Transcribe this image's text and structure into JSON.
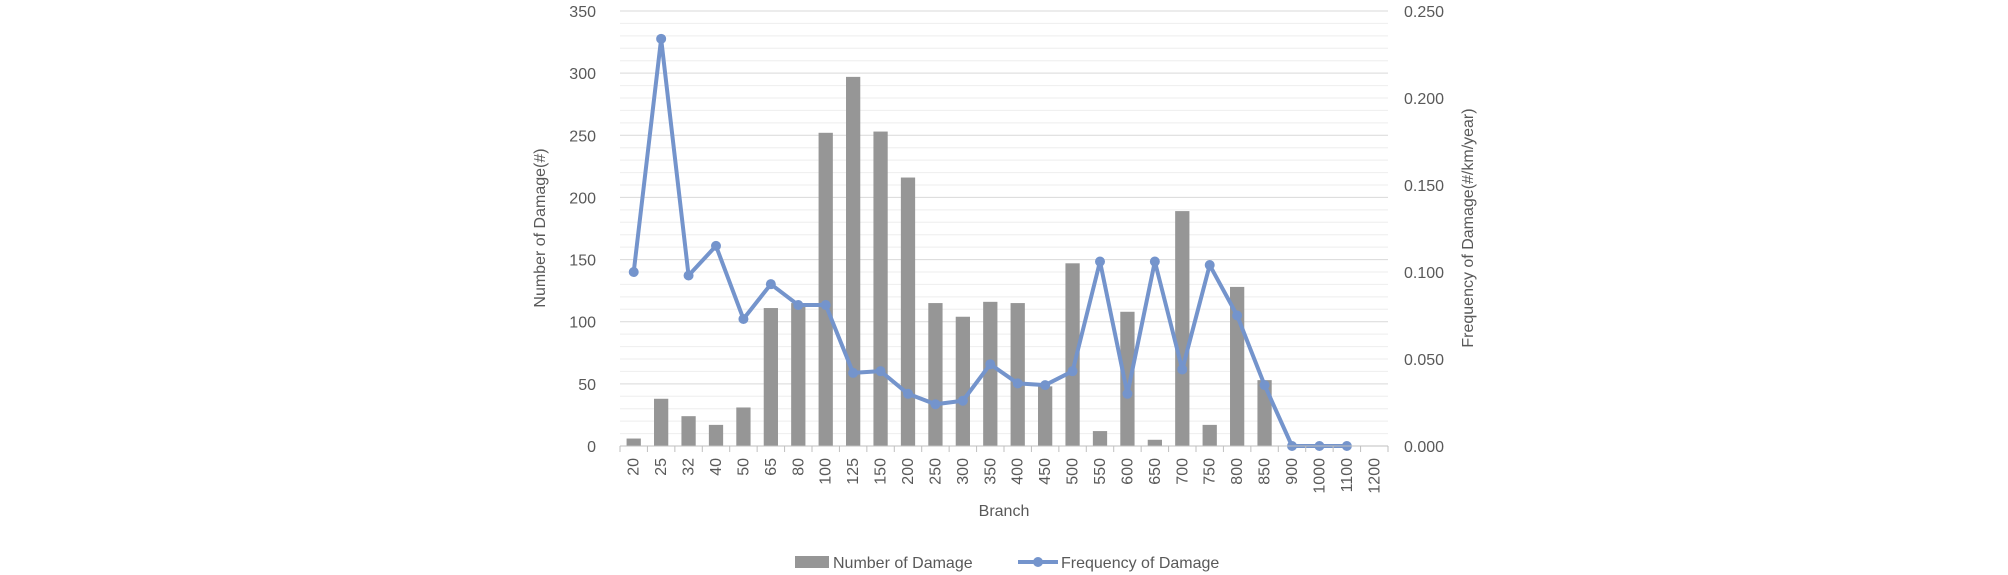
{
  "chart_data": {
    "type": "bar",
    "categories": [
      "20",
      "25",
      "32",
      "40",
      "50",
      "65",
      "80",
      "100",
      "125",
      "150",
      "200",
      "250",
      "300",
      "350",
      "400",
      "450",
      "500",
      "550",
      "600",
      "650",
      "700",
      "750",
      "800",
      "850",
      "900",
      "1000",
      "1100",
      "1200"
    ],
    "xlabel": "Branch",
    "ylabel": "Number of Damage(#)",
    "y2label": "Frequency of Damage(#/km/year)",
    "ylim": [
      0,
      350
    ],
    "y2lim": [
      0,
      0.25
    ],
    "yticks": [
      "0",
      "50",
      "100",
      "150",
      "200",
      "250",
      "300",
      "350"
    ],
    "y2ticks": [
      "0.000",
      "0.050",
      "0.100",
      "0.150",
      "0.200",
      "0.250"
    ],
    "grid": true,
    "legend_position": "bottom",
    "series": [
      {
        "name": "Number of Damage",
        "type": "bar",
        "axis": "left",
        "color": "#969696",
        "values": [
          6,
          38,
          24,
          17,
          31,
          111,
          115,
          252,
          297,
          253,
          216,
          115,
          104,
          116,
          115,
          48,
          147,
          12,
          108,
          5,
          189,
          17,
          128,
          53,
          0,
          0,
          0,
          0
        ]
      },
      {
        "name": "Frequency of Damage",
        "type": "line",
        "axis": "right",
        "color": "#7494CC",
        "values": [
          0.1,
          0.234,
          0.098,
          0.115,
          0.073,
          0.093,
          0.081,
          0.081,
          0.042,
          0.043,
          0.03,
          0.024,
          0.026,
          0.047,
          0.036,
          0.035,
          0.043,
          0.106,
          0.03,
          0.106,
          0.044,
          0.104,
          0.075,
          0.035,
          0.0,
          0.0,
          0.0,
          null
        ]
      }
    ]
  }
}
